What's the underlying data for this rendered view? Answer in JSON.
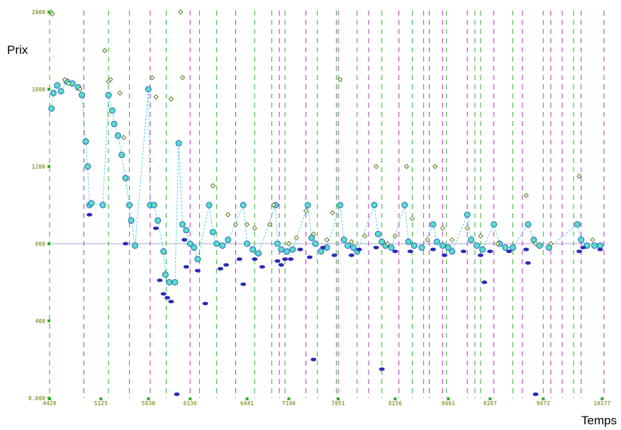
{
  "chart_data": {
    "type": "scatter",
    "xlabel": "Temps",
    "ylabel": "Prix",
    "x_tick_labels": [
      "4428",
      "5125",
      "5830",
      "6136",
      "6641",
      "7146",
      "7851",
      "8156",
      "8661",
      "9167",
      "9672",
      "10177"
    ],
    "y_ticks": [
      0,
      400,
      800,
      1200,
      1600,
      2000
    ],
    "y_tick_labels": [
      "0.000",
      "400",
      "800",
      "1200",
      "1600",
      "2000"
    ],
    "ylim": [
      0,
      2000
    ],
    "reference_line": 800,
    "grid": false,
    "green_vlines_idx": [
      0,
      1.55,
      2.1,
      3.07,
      3.95,
      4.4,
      5.4,
      5.85,
      6.2,
      7.05,
      7.55,
      8.1,
      8.75,
      9.55,
      9.85,
      10.45,
      11.2,
      11.35,
      12.2,
      13.0,
      13.8
    ],
    "purple_vlines_idx": [
      0.9,
      2.65,
      3.7,
      4.9,
      6.05,
      6.75,
      7.6,
      8.4,
      9.2,
      10.0,
      10.35,
      11.0,
      11.7,
      12.45,
      13.2,
      13.5,
      14.0,
      14.6
    ],
    "colors": {
      "green_line": "#2fae2f",
      "purple_line": "#b02fb0",
      "reference": "#b8b8d8",
      "cyan": "#3cc7d6",
      "aqua": "#58e0c0",
      "blue": "#2a5bd7",
      "dark_blue": "#2b2bb5",
      "olive": "#5a7a20",
      "tick": "#9a9a40"
    },
    "series": [
      {
        "name": "",
        "color": "#3cc7d6",
        "points": [
          [
            0.05,
            1500
          ],
          [
            0.1,
            1580
          ],
          [
            0.2,
            1620
          ],
          [
            0.3,
            1590
          ],
          [
            0.45,
            1640
          ],
          [
            0.6,
            1630
          ],
          [
            0.75,
            1610
          ],
          [
            0.85,
            1570
          ],
          [
            0.95,
            1330
          ],
          [
            1.0,
            1200
          ],
          [
            1.05,
            1000
          ],
          [
            1.1,
            1010
          ],
          [
            1.4,
            1000
          ],
          [
            1.55,
            1570
          ],
          [
            1.65,
            1490
          ],
          [
            1.7,
            1420
          ],
          [
            1.8,
            1360
          ],
          [
            1.9,
            1260
          ],
          [
            2.0,
            1140
          ],
          [
            2.1,
            1000
          ],
          [
            2.15,
            920
          ],
          [
            2.25,
            790
          ],
          [
            2.6,
            1600
          ],
          [
            2.65,
            1000
          ],
          [
            2.75,
            1000
          ],
          [
            2.85,
            920
          ],
          [
            3.0,
            760
          ],
          [
            3.05,
            640
          ],
          [
            3.15,
            600
          ],
          [
            3.3,
            600
          ],
          [
            3.4,
            1320
          ],
          [
            3.5,
            900
          ],
          [
            3.6,
            870
          ],
          [
            3.7,
            800
          ],
          [
            3.8,
            780
          ],
          [
            3.9,
            720
          ],
          [
            4.2,
            1000
          ],
          [
            4.3,
            860
          ],
          [
            4.4,
            800
          ],
          [
            4.55,
            790
          ],
          [
            4.7,
            820
          ],
          [
            5.1,
            1000
          ],
          [
            5.2,
            800
          ],
          [
            5.35,
            770
          ],
          [
            5.5,
            750
          ],
          [
            5.95,
            1000
          ],
          [
            6.0,
            800
          ],
          [
            6.1,
            770
          ],
          [
            6.25,
            760
          ],
          [
            6.4,
            770
          ],
          [
            6.8,
            1000
          ],
          [
            6.9,
            830
          ],
          [
            7.0,
            800
          ],
          [
            7.15,
            760
          ],
          [
            7.3,
            780
          ],
          [
            7.65,
            1000
          ],
          [
            7.75,
            820
          ],
          [
            7.85,
            790
          ],
          [
            8.0,
            780
          ],
          [
            8.1,
            760
          ],
          [
            8.55,
            1000
          ],
          [
            8.65,
            850
          ],
          [
            8.75,
            810
          ],
          [
            8.85,
            790
          ],
          [
            9.0,
            780
          ],
          [
            9.35,
            1000
          ],
          [
            9.45,
            810
          ],
          [
            9.6,
            790
          ],
          [
            9.8,
            780
          ],
          [
            10.1,
            900
          ],
          [
            10.2,
            810
          ],
          [
            10.35,
            790
          ],
          [
            10.5,
            780
          ],
          [
            10.6,
            760
          ],
          [
            11.0,
            950
          ],
          [
            11.1,
            820
          ],
          [
            11.25,
            790
          ],
          [
            11.4,
            770
          ],
          [
            11.7,
            900
          ],
          [
            11.85,
            800
          ],
          [
            12.0,
            780
          ],
          [
            12.2,
            780
          ],
          [
            12.6,
            900
          ],
          [
            12.75,
            820
          ],
          [
            12.9,
            790
          ],
          [
            13.15,
            780
          ],
          [
            13.9,
            900
          ],
          [
            14.0,
            820
          ],
          [
            14.15,
            790
          ],
          [
            14.35,
            790
          ],
          [
            14.5,
            790
          ]
        ]
      },
      {
        "name": "",
        "color": "#5a7a20",
        "points": [
          [
            0.03,
            2000
          ],
          [
            0.07,
            1990
          ],
          [
            0.4,
            1650
          ],
          [
            0.5,
            1630
          ],
          [
            0.8,
            1600
          ],
          [
            1.45,
            1800
          ],
          [
            1.55,
            1640
          ],
          [
            1.6,
            1650
          ],
          [
            1.85,
            1580
          ],
          [
            1.95,
            1350
          ],
          [
            2.7,
            1660
          ],
          [
            2.8,
            1560
          ],
          [
            3.2,
            1550
          ],
          [
            3.45,
            2000
          ],
          [
            3.5,
            1660
          ],
          [
            4.3,
            1100
          ],
          [
            4.7,
            950
          ],
          [
            4.9,
            900
          ],
          [
            5.2,
            900
          ],
          [
            5.4,
            880
          ],
          [
            5.8,
            900
          ],
          [
            5.9,
            1000
          ],
          [
            6.3,
            800
          ],
          [
            6.5,
            830
          ],
          [
            6.75,
            970
          ],
          [
            6.95,
            850
          ],
          [
            7.3,
            820
          ],
          [
            7.45,
            960
          ],
          [
            7.65,
            1650
          ],
          [
            7.95,
            810
          ],
          [
            8.3,
            840
          ],
          [
            8.6,
            1200
          ],
          [
            8.9,
            800
          ],
          [
            9.1,
            840
          ],
          [
            9.4,
            1200
          ],
          [
            9.55,
            930
          ],
          [
            9.95,
            820
          ],
          [
            10.15,
            1200
          ],
          [
            10.35,
            880
          ],
          [
            10.6,
            820
          ],
          [
            11.0,
            880
          ],
          [
            11.35,
            840
          ],
          [
            11.8,
            800
          ],
          [
            12.55,
            1050
          ],
          [
            12.8,
            800
          ],
          [
            13.2,
            800
          ],
          [
            13.95,
            1150
          ],
          [
            14.3,
            820
          ]
        ]
      },
      {
        "name": "",
        "color": "#2b2bb5",
        "points": [
          [
            1.05,
            950
          ],
          [
            2.0,
            800
          ],
          [
            2.8,
            880
          ],
          [
            2.9,
            610
          ],
          [
            3.0,
            540
          ],
          [
            3.1,
            520
          ],
          [
            3.2,
            500
          ],
          [
            3.35,
            20
          ],
          [
            3.55,
            820
          ],
          [
            3.6,
            680
          ],
          [
            3.9,
            660
          ],
          [
            4.1,
            490
          ],
          [
            4.5,
            670
          ],
          [
            4.65,
            690
          ],
          [
            5.0,
            720
          ],
          [
            5.1,
            590
          ],
          [
            5.4,
            720
          ],
          [
            5.6,
            680
          ],
          [
            6.0,
            710
          ],
          [
            6.1,
            690
          ],
          [
            6.2,
            720
          ],
          [
            6.35,
            720
          ],
          [
            6.6,
            770
          ],
          [
            6.85,
            730
          ],
          [
            6.95,
            200
          ],
          [
            7.2,
            780
          ],
          [
            7.5,
            740
          ],
          [
            7.95,
            740
          ],
          [
            8.15,
            770
          ],
          [
            8.6,
            780
          ],
          [
            8.75,
            150
          ],
          [
            9.1,
            760
          ],
          [
            9.5,
            760
          ],
          [
            10.1,
            770
          ],
          [
            10.4,
            740
          ],
          [
            10.9,
            760
          ],
          [
            11.35,
            740
          ],
          [
            11.45,
            600
          ],
          [
            11.6,
            760
          ],
          [
            12.1,
            760
          ],
          [
            12.55,
            770
          ],
          [
            12.6,
            700
          ],
          [
            12.8,
            20
          ],
          [
            13.95,
            760
          ],
          [
            14.05,
            780
          ],
          [
            14.5,
            770
          ]
        ]
      }
    ]
  }
}
